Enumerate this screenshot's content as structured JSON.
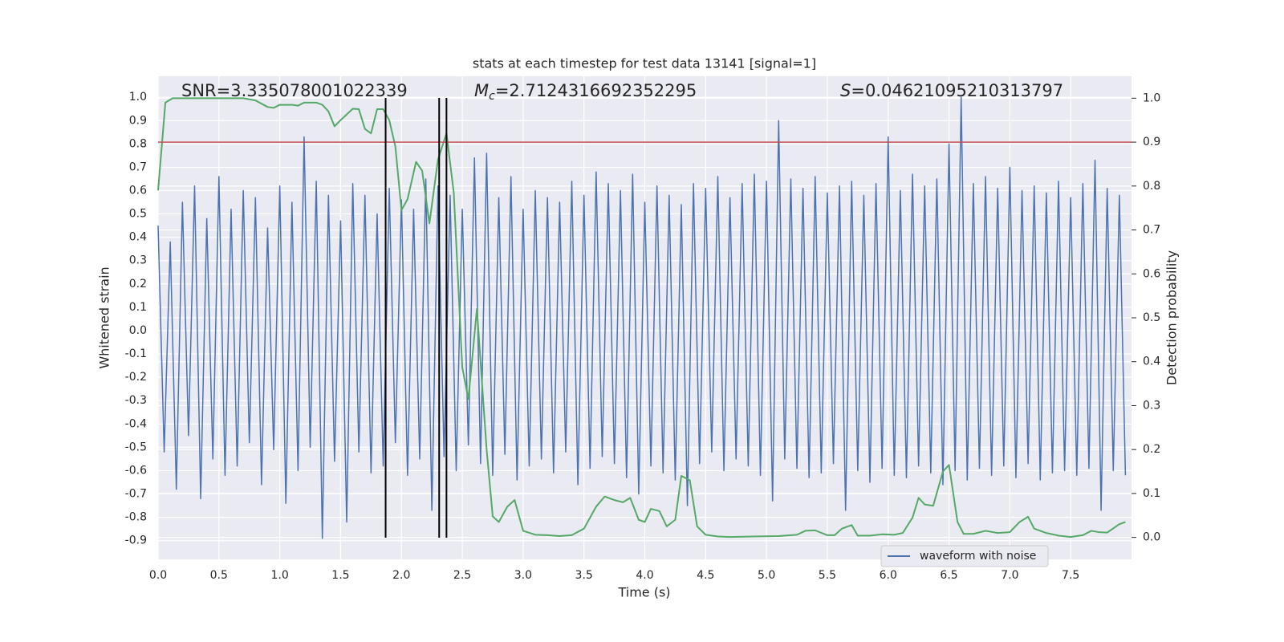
{
  "chart_data": {
    "type": "line",
    "title": "stats at each timestep for test data 13141 [signal=1]",
    "xlabel": "Time (s)",
    "ylabel": "Whitened strain",
    "y2label": "Detection probability",
    "annotations": [
      {
        "text": "SNR=3.335078001022339"
      },
      {
        "symbol": "M",
        "subscript": "c",
        "text": "=2.7124316692352295"
      },
      {
        "symbol": "S",
        "text": "=0.04621095210313797"
      }
    ],
    "xlim": [
      0,
      8
    ],
    "ylim": [
      -0.98,
      1.09
    ],
    "y2lim": [
      -0.05,
      1.05
    ],
    "xticks": [
      {
        "value": 0,
        "label": "0.0"
      },
      0.5,
      {
        "value": 1,
        "label": "1.0"
      },
      1.5,
      {
        "value": 2,
        "label": "2.0"
      },
      2.5,
      {
        "value": 3,
        "label": "3.0"
      },
      3.5,
      {
        "value": 4,
        "label": "4.0"
      },
      4.5,
      {
        "value": 5,
        "label": "5.0"
      },
      5.5,
      {
        "value": 6,
        "label": "6.0"
      },
      6.5,
      {
        "value": 7,
        "label": "7.0"
      },
      7.5
    ],
    "yticks": [
      -0.9,
      -0.8,
      -0.7,
      -0.6,
      -0.5,
      -0.4,
      -0.3,
      -0.2,
      -0.1,
      {
        "value": 0,
        "label": "0.0"
      },
      0.1,
      0.2,
      0.3,
      0.4,
      0.5,
      0.6,
      0.7,
      0.8,
      0.9,
      {
        "value": 1,
        "label": "1.0"
      }
    ],
    "y2ticks": [
      {
        "value": 0,
        "label": "0.0"
      },
      0.1,
      0.2,
      0.3,
      0.4,
      0.5,
      0.6,
      0.7,
      0.8,
      0.9,
      {
        "value": 1,
        "label": "1.0"
      }
    ],
    "grid": true,
    "legend": "lower right",
    "series": [
      {
        "name": "waveform with noise",
        "color": "#4c72b0",
        "x": [
          0,
          0.05,
          0.1,
          0.15,
          0.2,
          0.25,
          0.3,
          0.35,
          0.4,
          0.45,
          0.5,
          0.55,
          0.6,
          0.65,
          0.7,
          0.75,
          0.8,
          0.85,
          0.9,
          0.95,
          1,
          1.05,
          1.1,
          1.15,
          1.2,
          1.25,
          1.3,
          1.35,
          1.4,
          1.45,
          1.5,
          1.55,
          1.6,
          1.65,
          1.7,
          1.75,
          1.8,
          1.85,
          1.9,
          1.95,
          2,
          2.05,
          2.1,
          2.15,
          2.2,
          2.25,
          2.3,
          2.35,
          2.4,
          2.45,
          2.5,
          2.55,
          2.6,
          2.65,
          2.7,
          2.75,
          2.8,
          2.85,
          2.9,
          2.95,
          3,
          3.05,
          3.1,
          3.15,
          3.2,
          3.25,
          3.3,
          3.35,
          3.4,
          3.45,
          3.5,
          3.55,
          3.6,
          3.65,
          3.7,
          3.75,
          3.8,
          3.85,
          3.9,
          3.95,
          4,
          4.05,
          4.1,
          4.15,
          4.2,
          4.25,
          4.3,
          4.35,
          4.4,
          4.45,
          4.5,
          4.55,
          4.6,
          4.65,
          4.7,
          4.75,
          4.8,
          4.85,
          4.9,
          4.95,
          5,
          5.05,
          5.1,
          5.15,
          5.2,
          5.25,
          5.3,
          5.35,
          5.4,
          5.45,
          5.5,
          5.55,
          5.6,
          5.65,
          5.7,
          5.75,
          5.8,
          5.85,
          5.9,
          5.95,
          6,
          6.05,
          6.1,
          6.15,
          6.2,
          6.25,
          6.3,
          6.35,
          6.4,
          6.45,
          6.5,
          6.55,
          6.6,
          6.65,
          6.7,
          6.75,
          6.8,
          6.85,
          6.9,
          6.95,
          7,
          7.05,
          7.1,
          7.15,
          7.2,
          7.25,
          7.3,
          7.35,
          7.4,
          7.45,
          7.5,
          7.55,
          7.6,
          7.65,
          7.7,
          7.75,
          7.8,
          7.85,
          7.9,
          7.95
        ],
        "values": [
          0.45,
          -0.52,
          0.38,
          -0.68,
          0.55,
          -0.45,
          0.62,
          -0.72,
          0.48,
          -0.55,
          0.66,
          -0.62,
          0.52,
          -0.58,
          0.6,
          -0.48,
          0.57,
          -0.66,
          0.44,
          -0.51,
          0.62,
          -0.74,
          0.55,
          -0.6,
          0.83,
          -0.5,
          0.64,
          -0.89,
          0.58,
          -0.56,
          0.47,
          -0.82,
          0.63,
          -0.52,
          0.58,
          -0.61,
          0.5,
          -0.58,
          0.61,
          -0.48,
          0.56,
          -0.62,
          0.52,
          -0.55,
          0.65,
          -0.77,
          0.62,
          -0.54,
          0.58,
          -0.6,
          0.52,
          -0.49,
          0.74,
          -0.57,
          0.76,
          -0.62,
          0.57,
          -0.53,
          0.66,
          -0.64,
          0.52,
          -0.58,
          0.6,
          -0.55,
          0.57,
          -0.61,
          0.55,
          -0.52,
          0.64,
          -0.66,
          0.58,
          -0.59,
          0.68,
          -0.54,
          0.63,
          -0.57,
          0.6,
          -0.63,
          0.67,
          -0.7,
          0.55,
          -0.58,
          0.62,
          -0.61,
          0.58,
          -0.64,
          0.54,
          -0.75,
          0.63,
          -0.57,
          0.61,
          -0.52,
          0.66,
          -0.6,
          0.57,
          -0.55,
          0.63,
          -0.58,
          0.67,
          -0.62,
          0.64,
          -0.73,
          0.9,
          -0.55,
          0.65,
          -0.59,
          0.61,
          -0.63,
          0.66,
          -0.61,
          0.59,
          -0.57,
          0.62,
          -0.77,
          0.64,
          -0.6,
          0.58,
          -0.65,
          0.63,
          -0.59,
          0.83,
          -0.62,
          0.6,
          -0.63,
          0.67,
          -0.58,
          0.62,
          -0.61,
          0.65,
          -0.66,
          0.8,
          -0.6,
          1.0,
          -0.64,
          0.63,
          -0.59,
          0.66,
          -0.62,
          0.61,
          -0.58,
          0.7,
          -0.63,
          0.6,
          -0.57,
          0.62,
          -0.64,
          0.59,
          -0.61,
          0.64,
          -0.6,
          0.57,
          -0.62,
          0.63,
          -0.59,
          0.73,
          -0.77,
          0.61,
          -0.6,
          0.58,
          -0.62
        ]
      },
      {
        "color": "#55a868",
        "axis": "y2",
        "x": [
          0,
          0.06,
          0.12,
          0.7,
          0.8,
          0.9,
          0.95,
          1.0,
          1.1,
          1.15,
          1.2,
          1.3,
          1.35,
          1.4,
          1.45,
          1.5,
          1.6,
          1.65,
          1.7,
          1.75,
          1.8,
          1.85,
          1.9,
          1.95,
          2.0,
          2.05,
          2.12,
          2.17,
          2.23,
          2.3,
          2.37,
          2.43,
          2.5,
          2.55,
          2.62,
          2.7,
          2.75,
          2.8,
          2.87,
          2.93,
          3.0,
          3.1,
          3.2,
          3.3,
          3.4,
          3.5,
          3.6,
          3.67,
          3.75,
          3.82,
          3.88,
          3.95,
          4.0,
          4.05,
          4.12,
          4.18,
          4.25,
          4.3,
          4.37,
          4.43,
          4.5,
          4.6,
          4.7,
          4.9,
          5.1,
          5.25,
          5.32,
          5.4,
          5.5,
          5.56,
          5.62,
          5.7,
          5.75,
          5.85,
          5.95,
          6.05,
          6.12,
          6.2,
          6.25,
          6.3,
          6.37,
          6.45,
          6.5,
          6.57,
          6.62,
          6.7,
          6.8,
          6.9,
          7.0,
          7.08,
          7.15,
          7.2,
          7.3,
          7.4,
          7.5,
          7.6,
          7.67,
          7.73,
          7.8,
          7.9,
          7.95
        ],
        "values": [
          0.79,
          0.99,
          1.0,
          1.0,
          0.995,
          0.98,
          0.978,
          0.985,
          0.985,
          0.983,
          0.99,
          0.99,
          0.985,
          0.97,
          0.936,
          0.95,
          0.976,
          0.975,
          0.93,
          0.92,
          0.975,
          0.975,
          0.95,
          0.89,
          0.745,
          0.77,
          0.855,
          0.835,
          0.715,
          0.86,
          0.92,
          0.785,
          0.387,
          0.315,
          0.52,
          0.2,
          0.048,
          0.035,
          0.07,
          0.085,
          0.015,
          0.006,
          0.005,
          0.003,
          0.005,
          0.02,
          0.07,
          0.093,
          0.085,
          0.08,
          0.09,
          0.04,
          0.035,
          0.065,
          0.06,
          0.025,
          0.04,
          0.14,
          0.13,
          0.025,
          0.006,
          0.002,
          0.001,
          0.002,
          0.003,
          0.006,
          0.015,
          0.016,
          0.005,
          0.005,
          0.02,
          0.028,
          0.004,
          0.004,
          0.007,
          0.006,
          0.01,
          0.045,
          0.09,
          0.075,
          0.072,
          0.15,
          0.165,
          0.035,
          0.008,
          0.008,
          0.015,
          0.01,
          0.012,
          0.035,
          0.047,
          0.02,
          0.01,
          0.004,
          0.001,
          0.005,
          0.015,
          0.012,
          0.011,
          0.03,
          0.035
        ]
      }
    ],
    "hlines": [
      {
        "value": 0.9,
        "axis": "y2",
        "color": "#c44e52"
      }
    ],
    "vlines": {
      "values": [
        1.87,
        2.31,
        2.37
      ],
      "color": "#000000"
    }
  }
}
